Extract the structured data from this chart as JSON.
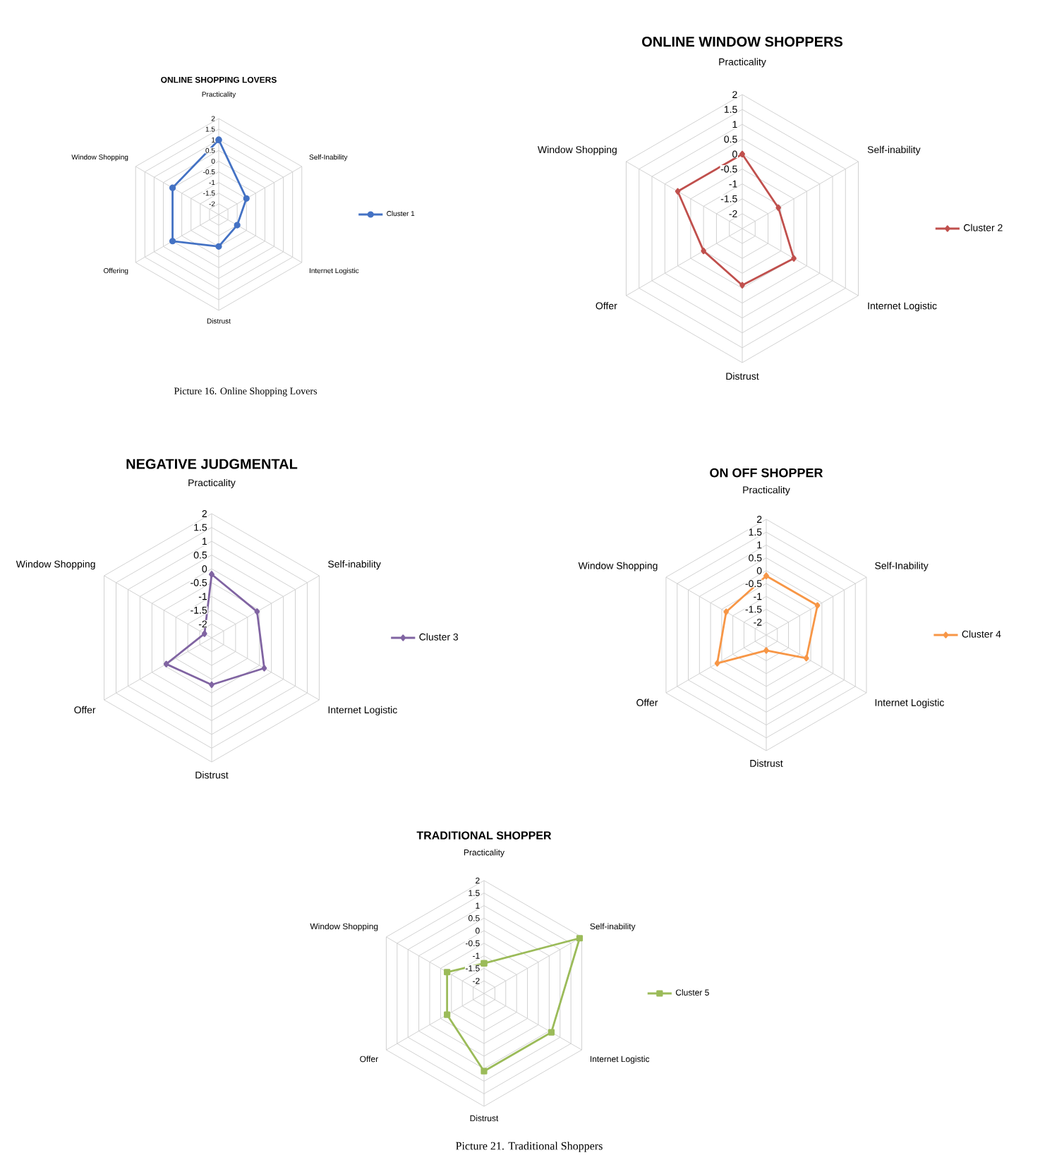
{
  "chart_data": [
    {
      "type": "radar",
      "title": "ONLINE SHOPPING LOVERS",
      "categories": [
        "Practicality",
        "Self-Inability",
        "Internet Logistic",
        "Distrust",
        "Offering",
        "Window Shopping"
      ],
      "ylim": [
        -2.5,
        2
      ],
      "yticks": [
        -2,
        -1.5,
        -1,
        -0.5,
        0,
        0.5,
        1,
        1.5,
        2
      ],
      "grid": true,
      "legend": "right",
      "marker": "circle",
      "annotations": [
        "Picture 16. Online Shopping Lovers"
      ],
      "series": [
        {
          "name": "Cluster 1",
          "color": "#4472c4",
          "values": [
            1,
            -1,
            -1.5,
            -1,
            0,
            0
          ]
        }
      ]
    },
    {
      "type": "radar",
      "title": "ONLINE WINDOW SHOPPERS",
      "categories": [
        "Practicality",
        "Self-inability",
        "Internet Logistic",
        "Distrust",
        "Offer",
        "Window Shopping"
      ],
      "ylim": [
        -2.5,
        2
      ],
      "yticks": [
        -2,
        -1.5,
        -1,
        -0.5,
        0,
        0.5,
        1,
        1.5,
        2
      ],
      "grid": true,
      "legend": "right",
      "marker": "diamond",
      "series": [
        {
          "name": "Cluster 2",
          "color": "#c0504d",
          "values": [
            0,
            -1.1,
            -0.5,
            -0.6,
            -1,
            0
          ]
        }
      ]
    },
    {
      "type": "radar",
      "title": "NEGATIVE JUDGMENTAL",
      "categories": [
        "Practicality",
        "Self-inability",
        "Internet Logistic",
        "Distrust",
        "Offer",
        "Window Shopping"
      ],
      "ylim": [
        -2.5,
        2
      ],
      "yticks": [
        -2,
        -1.5,
        -1,
        -0.5,
        0,
        0.5,
        1,
        1.5,
        2
      ],
      "grid": true,
      "legend": "right",
      "marker": "diamond",
      "series": [
        {
          "name": "Cluster 3",
          "color": "#8064a2",
          "values": [
            -0.2,
            -0.6,
            -0.3,
            -0.8,
            -0.6,
            -2.2
          ]
        }
      ]
    },
    {
      "type": "radar",
      "title": "ON OFF SHOPPER",
      "categories": [
        "Practicality",
        "Self-Inability",
        "Internet Logistic",
        "Distrust",
        "Offer",
        "Window Shopping"
      ],
      "ylim": [
        -2.5,
        2
      ],
      "yticks": [
        -2,
        -1.5,
        -1,
        -0.5,
        0,
        0.5,
        1,
        1.5,
        2
      ],
      "grid": true,
      "legend": "right",
      "marker": "diamond",
      "series": [
        {
          "name": "Cluster 4",
          "color": "#f79646",
          "values": [
            -0.2,
            -0.2,
            -0.7,
            -1.9,
            -0.3,
            -0.7
          ]
        }
      ]
    },
    {
      "type": "radar",
      "title": "TRADITIONAL SHOPPER",
      "categories": [
        "Practicality",
        "Self-inability",
        "Internet Logistic",
        "Distrust",
        "Offer",
        "Window Shopping"
      ],
      "ylim": [
        -2.5,
        2
      ],
      "yticks": [
        -2,
        -1.5,
        -1,
        -0.5,
        0,
        0.5,
        1,
        1.5,
        2
      ],
      "grid": true,
      "legend": "right",
      "marker": "square",
      "annotations": [
        "Picture 21. Traditional Shoppers"
      ],
      "series": [
        {
          "name": "Cluster 5",
          "color": "#9bbb59",
          "values": [
            -1.3,
            1.9,
            0.6,
            0.6,
            -0.8,
            -0.8
          ]
        }
      ]
    }
  ]
}
